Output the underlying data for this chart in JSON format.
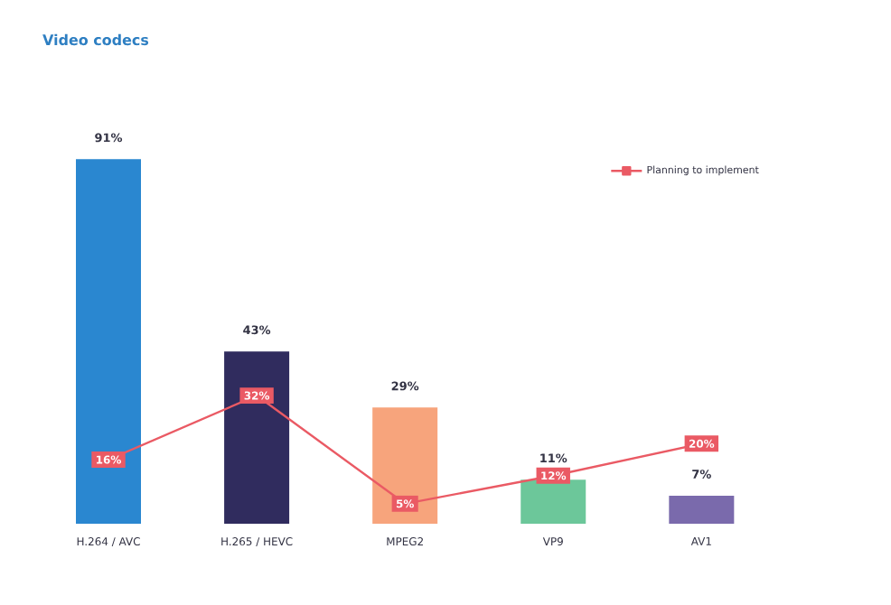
{
  "chart_data": {
    "type": "bar",
    "title": "Video codecs",
    "categories": [
      "H.264 / AVC",
      "H.265 / HEVC",
      "MPEG2",
      "VP9",
      "AV1"
    ],
    "legend": "top right",
    "series": [
      {
        "values": [
          91,
          43,
          29,
          11,
          7
        ],
        "colors": [
          "#2a87d0",
          "#302c5e",
          "#f7a47c",
          "#6cc79a",
          "#7a6aac"
        ],
        "value_labels": [
          "91%",
          "43%",
          "29%",
          "11%",
          "7%"
        ]
      },
      {
        "type": "line",
        "name": "Planning to implement",
        "color": "#ea5a64",
        "marker": "square",
        "values": [
          16,
          32,
          5,
          12,
          20
        ],
        "value_labels": [
          "16%",
          "32%",
          "5%",
          "12%",
          "20%"
        ]
      }
    ]
  }
}
